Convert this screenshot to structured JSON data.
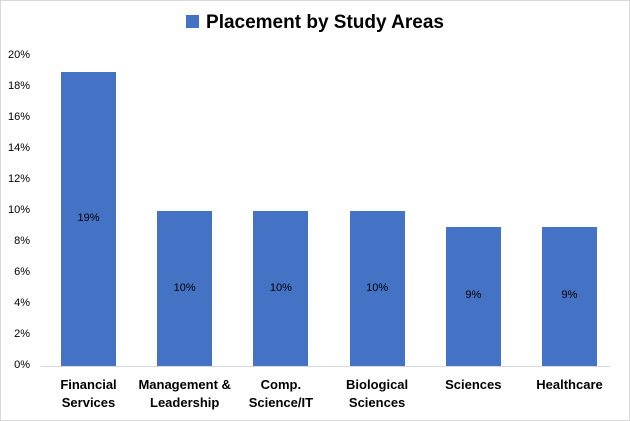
{
  "chart_data": {
    "type": "bar",
    "title": "Placement by Study Areas",
    "legend": [
      {
        "label": "Placement by Study Areas",
        "color": "#4472c4"
      }
    ],
    "legend_position": "top",
    "categories": [
      "Financial Services",
      "Management & Leadership",
      "Comp. Science/IT",
      "Biological Sciences",
      "Sciences",
      "Healthcare"
    ],
    "category_lines": [
      [
        "Financial",
        "Services"
      ],
      [
        "Management &",
        "Leadership"
      ],
      [
        "Comp.",
        "Science/IT"
      ],
      [
        "Biological",
        "Sciences"
      ],
      [
        "Sciences",
        ""
      ],
      [
        "Healthcare",
        ""
      ]
    ],
    "values": [
      19,
      10,
      10,
      10,
      9,
      9
    ],
    "value_labels": [
      "19%",
      "10%",
      "10%",
      "10%",
      "9%",
      "9%"
    ],
    "yticks": [
      "0%",
      "2%",
      "4%",
      "6%",
      "8%",
      "10%",
      "12%",
      "14%",
      "16%",
      "18%",
      "20%"
    ],
    "ylim": [
      0,
      20
    ],
    "xlabel": "",
    "ylabel": "",
    "grid": false,
    "bar_color": "#4472c4"
  }
}
